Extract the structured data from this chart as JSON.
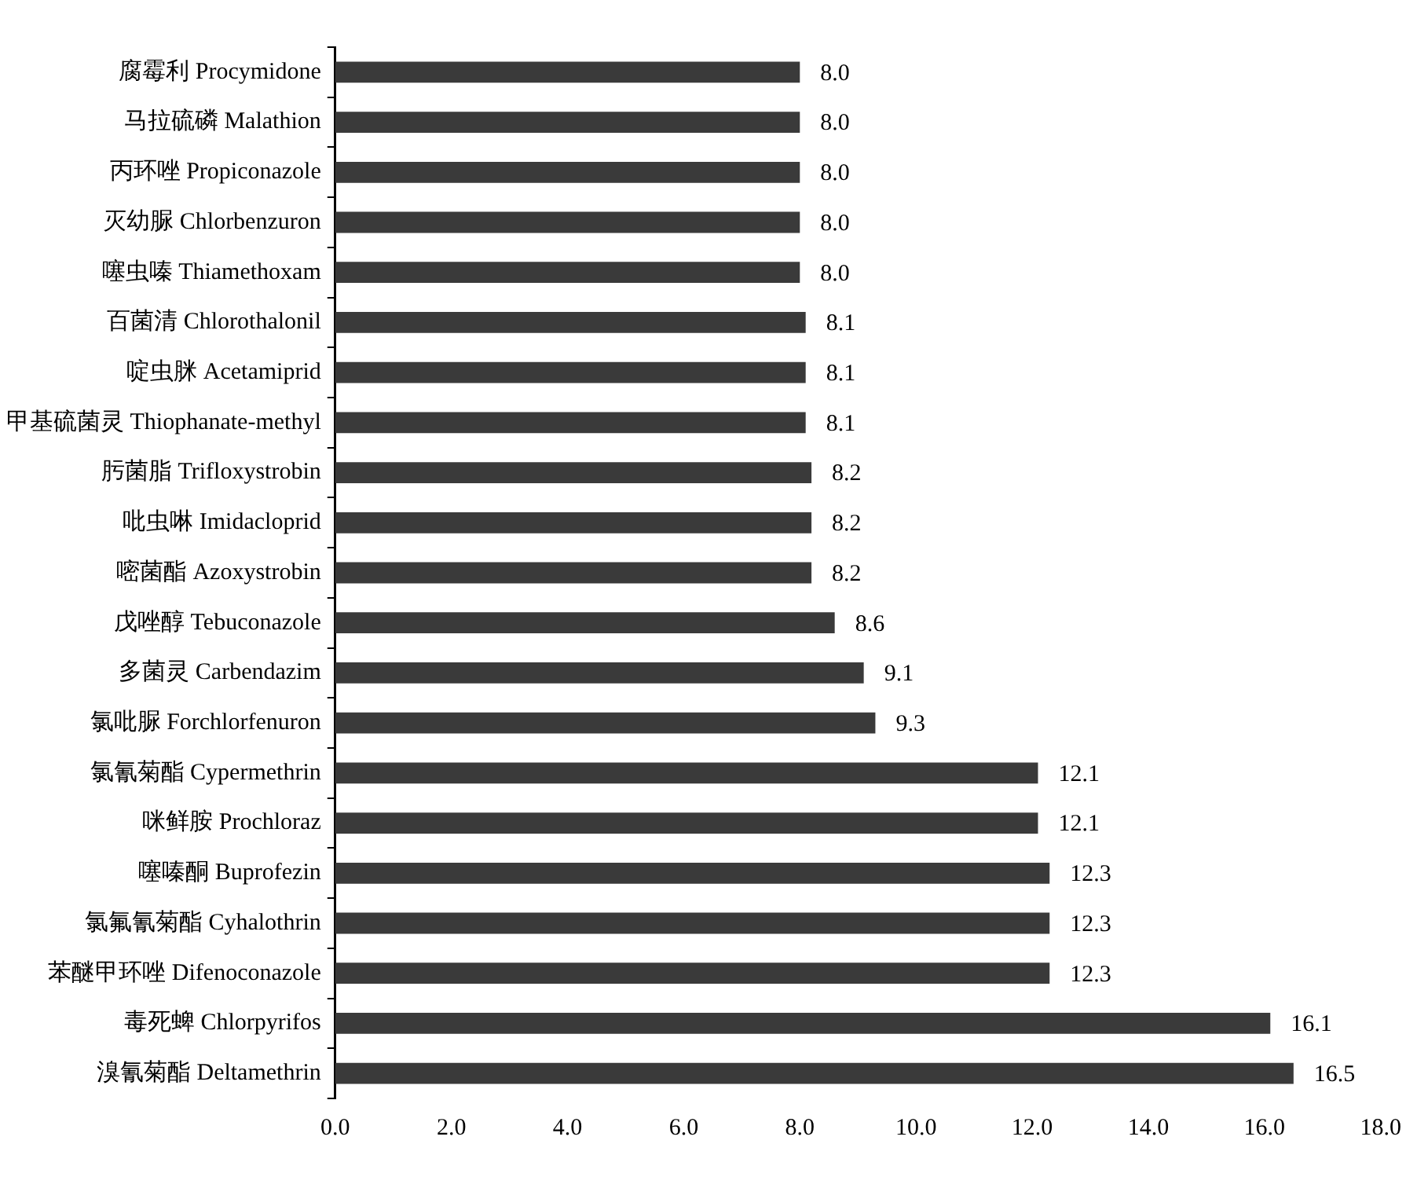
{
  "chart_data": {
    "type": "bar",
    "orientation": "horizontal",
    "categories": [
      "腐霉利 Procymidone",
      "马拉硫磷 Malathion",
      "丙环唑 Propiconazole",
      "灭幼脲 Chlorbenzuron",
      "噻虫嗪 Thiamethoxam",
      "百菌清 Chlorothalonil",
      "啶虫脒 Acetamiprid",
      "甲基硫菌灵 Thiophanate-methyl",
      "肟菌脂 Trifloxystrobin",
      "吡虫啉 Imidacloprid",
      "嘧菌酯 Azoxystrobin",
      "戊唑醇 Tebuconazole",
      "多菌灵 Carbendazim",
      "氯吡脲 Forchlorfenuron",
      "氯氰菊酯 Cypermethrin",
      "咪鲜胺 Prochloraz",
      "噻嗪酮 Buprofezin",
      "氯氟氰菊酯 Cyhalothrin",
      "苯醚甲环唑 Difenoconazole",
      "毒死蜱 Chlorpyrifos",
      "溴氰菊酯 Deltamethrin"
    ],
    "values": [
      8.0,
      8.0,
      8.0,
      8.0,
      8.0,
      8.1,
      8.1,
      8.1,
      8.2,
      8.2,
      8.2,
      8.6,
      9.1,
      9.3,
      12.1,
      12.1,
      12.3,
      12.3,
      12.3,
      16.1,
      16.5
    ],
    "value_labels": [
      "8.0",
      "8.0",
      "8.0",
      "8.0",
      "8.0",
      "8.1",
      "8.1",
      "8.1",
      "8.2",
      "8.2",
      "8.2",
      "8.6",
      "9.1",
      "9.3",
      "12.1",
      "12.1",
      "12.3",
      "12.3",
      "12.3",
      "16.1",
      "16.5"
    ],
    "color": "#3a3a3a",
    "xlim": [
      0,
      18
    ],
    "xticks": [
      {
        "value": 0,
        "label": "0.0"
      },
      {
        "value": 2,
        "label": "2.0"
      },
      {
        "value": 4,
        "label": "4.0"
      },
      {
        "value": 6,
        "label": "6.0"
      },
      {
        "value": 8,
        "label": "8.0"
      },
      {
        "value": 10,
        "label": "10.0"
      },
      {
        "value": 12,
        "label": "12.0"
      },
      {
        "value": 14,
        "label": "14.0"
      },
      {
        "value": 16,
        "label": "16.0"
      },
      {
        "value": 18,
        "label": "18.0"
      }
    ],
    "grid": false,
    "legend": false
  }
}
